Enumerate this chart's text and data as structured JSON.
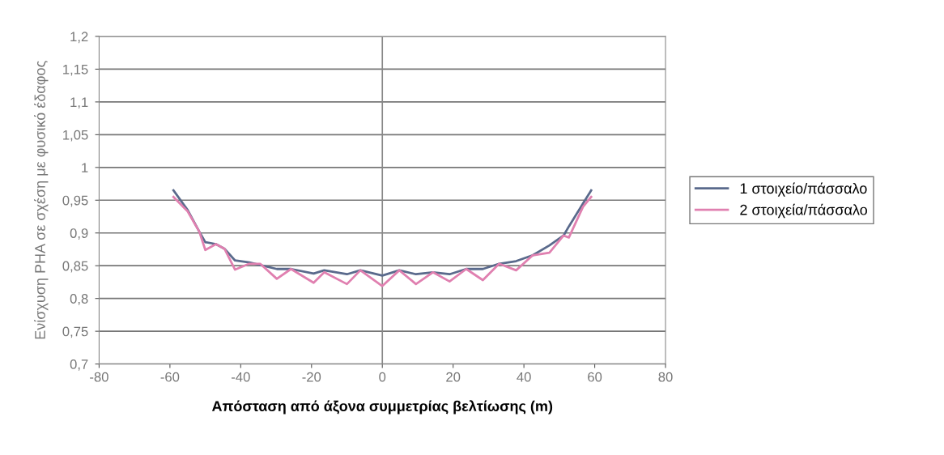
{
  "chart_data": {
    "type": "line",
    "xlabel": "Απόσταση από άξονα συμμετρίας βελτίωσης (m)",
    "ylabel": "Ενίσχυση PHA σε σχέση με φυσικό έδαφος",
    "xlim": [
      -80,
      80
    ],
    "xticks": [
      -80,
      -60,
      -40,
      -20,
      0,
      20,
      40,
      60,
      80
    ],
    "ylim": [
      0.7,
      1.2
    ],
    "yticks": [
      {
        "value": 0.7,
        "label": "0,7"
      },
      {
        "value": 0.75,
        "label": "0,75"
      },
      {
        "value": 0.8,
        "label": "0,8"
      },
      {
        "value": 0.85,
        "label": "0,85"
      },
      {
        "value": 0.9,
        "label": "0,9"
      },
      {
        "value": 0.95,
        "label": "0,95"
      },
      {
        "value": 1,
        "label": "1"
      },
      {
        "value": 1.05,
        "label": "1,05"
      },
      {
        "value": 1.1,
        "label": "1,1"
      },
      {
        "value": 1.15,
        "label": "1,15"
      },
      {
        "value": 1.2,
        "label": "1,2"
      }
    ],
    "grid": "y",
    "legend": "right",
    "marker": "none",
    "line_style": "solid",
    "series": [
      {
        "name": "1 στοιχείο/πάσσαλο",
        "color": "#5a6a8c",
        "x": [
          -59,
          -55,
          -51.7,
          -50,
          -47,
          -44.6,
          -41.6,
          -37.6,
          -34.5,
          -29.8,
          -25.8,
          -19.4,
          -16.4,
          -10,
          -6.2,
          0,
          4.8,
          9.5,
          14.3,
          19,
          23.7,
          28.4,
          33,
          37.8,
          42.5,
          47.2,
          51.2,
          52.7,
          56.7,
          59
        ],
        "values": [
          0.965,
          0.935,
          0.902,
          0.886,
          0.883,
          0.876,
          0.858,
          0.855,
          0.851,
          0.845,
          0.845,
          0.838,
          0.843,
          0.837,
          0.843,
          0.835,
          0.843,
          0.837,
          0.84,
          0.837,
          0.845,
          0.845,
          0.853,
          0.857,
          0.866,
          0.881,
          0.896,
          0.91,
          0.945,
          0.965
        ]
      },
      {
        "name": "2 στοιχεία/πάσσαλο",
        "color": "#e080b0",
        "x": [
          -59,
          -55,
          -51.7,
          -50,
          -47,
          -44.6,
          -41.6,
          -37.6,
          -34.5,
          -29.8,
          -25.8,
          -19.4,
          -16.4,
          -10,
          -6.2,
          0,
          4.8,
          9.5,
          14.3,
          19,
          23.7,
          28.4,
          33,
          37.8,
          42.5,
          47.2,
          51.2,
          52.7,
          56.7,
          59
        ],
        "values": [
          0.955,
          0.933,
          0.902,
          0.874,
          0.883,
          0.876,
          0.844,
          0.853,
          0.853,
          0.83,
          0.845,
          0.824,
          0.84,
          0.822,
          0.843,
          0.819,
          0.843,
          0.822,
          0.84,
          0.826,
          0.845,
          0.828,
          0.853,
          0.843,
          0.866,
          0.87,
          0.896,
          0.893,
          0.94,
          0.955
        ]
      }
    ]
  }
}
